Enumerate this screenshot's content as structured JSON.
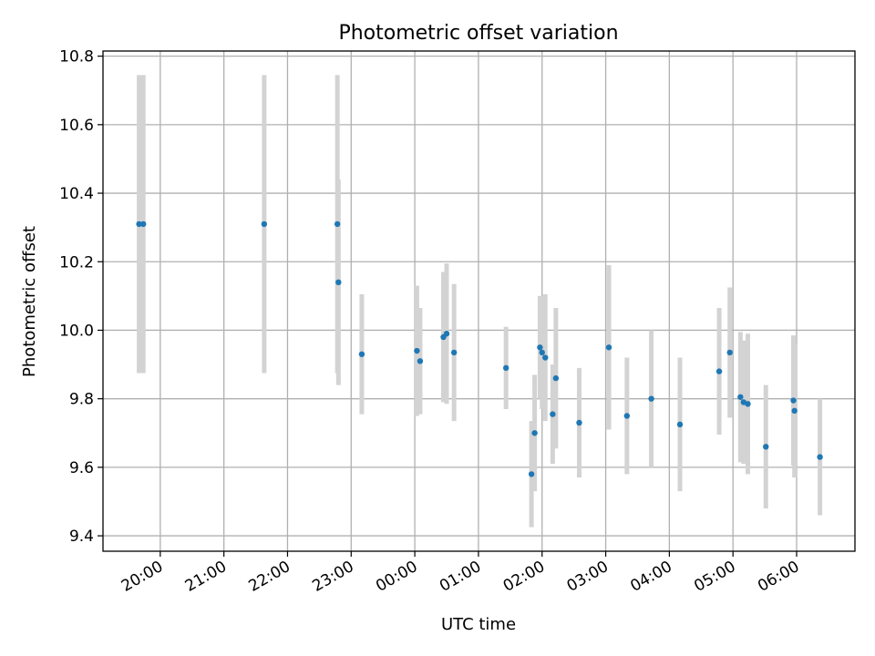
{
  "chart_data": {
    "type": "scatter",
    "title": "Photometric offset variation",
    "xlabel": "UTC time",
    "ylabel": "Photometric offset",
    "grid": true,
    "x_ticks": [
      "20:00",
      "21:00",
      "22:00",
      "23:00",
      "00:00",
      "01:00",
      "02:00",
      "03:00",
      "04:00",
      "05:00",
      "06:00"
    ],
    "y_ticks": [
      "9.4",
      "9.6",
      "9.8",
      "10.0",
      "10.2",
      "10.4",
      "10.6",
      "10.8"
    ],
    "xlim": [
      "19:06",
      "06:55"
    ],
    "ylim": [
      9.355,
      10.815
    ],
    "colors": {
      "marker": "#1f77b4",
      "errorbar": "#d3d3d3",
      "grid": "#b0b0b0"
    },
    "points": [
      {
        "t": "19:40",
        "y": 10.31,
        "err": 0.435
      },
      {
        "t": "19:44",
        "y": 10.31,
        "err": 0.435
      },
      {
        "t": "21:38",
        "y": 10.31,
        "err": 0.435
      },
      {
        "t": "22:47",
        "y": 10.31,
        "err": 0.435
      },
      {
        "t": "22:48",
        "y": 10.14,
        "err": 0.3
      },
      {
        "t": "23:10",
        "y": 9.93,
        "err": 0.175
      },
      {
        "t": "00:02",
        "y": 9.94,
        "err": 0.19
      },
      {
        "t": "00:05",
        "y": 9.91,
        "err": 0.155
      },
      {
        "t": "00:27",
        "y": 9.98,
        "err": 0.19
      },
      {
        "t": "00:30",
        "y": 9.99,
        "err": 0.205
      },
      {
        "t": "00:37",
        "y": 9.935,
        "err": 0.2
      },
      {
        "t": "01:26",
        "y": 9.89,
        "err": 0.12
      },
      {
        "t": "01:50",
        "y": 9.58,
        "err": 0.155
      },
      {
        "t": "01:53",
        "y": 9.7,
        "err": 0.17
      },
      {
        "t": "01:58",
        "y": 9.95,
        "err": 0.15
      },
      {
        "t": "02:00",
        "y": 9.935,
        "err": 0.165
      },
      {
        "t": "02:03",
        "y": 9.92,
        "err": 0.185
      },
      {
        "t": "02:10",
        "y": 9.755,
        "err": 0.145
      },
      {
        "t": "02:13",
        "y": 9.86,
        "err": 0.205
      },
      {
        "t": "02:35",
        "y": 9.73,
        "err": 0.16
      },
      {
        "t": "03:03",
        "y": 9.95,
        "err": 0.24
      },
      {
        "t": "03:20",
        "y": 9.75,
        "err": 0.17
      },
      {
        "t": "03:43",
        "y": 9.8,
        "err": 0.2
      },
      {
        "t": "04:10",
        "y": 9.725,
        "err": 0.195
      },
      {
        "t": "04:47",
        "y": 9.88,
        "err": 0.185
      },
      {
        "t": "04:57",
        "y": 9.935,
        "err": 0.19
      },
      {
        "t": "05:07",
        "y": 9.805,
        "err": 0.19
      },
      {
        "t": "05:10",
        "y": 9.79,
        "err": 0.18
      },
      {
        "t": "05:14",
        "y": 9.785,
        "err": 0.205
      },
      {
        "t": "05:31",
        "y": 9.66,
        "err": 0.18
      },
      {
        "t": "05:57",
        "y": 9.795,
        "err": 0.19
      },
      {
        "t": "05:58",
        "y": 9.765,
        "err": 0.195
      },
      {
        "t": "06:22",
        "y": 9.63,
        "err": 0.17
      }
    ]
  }
}
